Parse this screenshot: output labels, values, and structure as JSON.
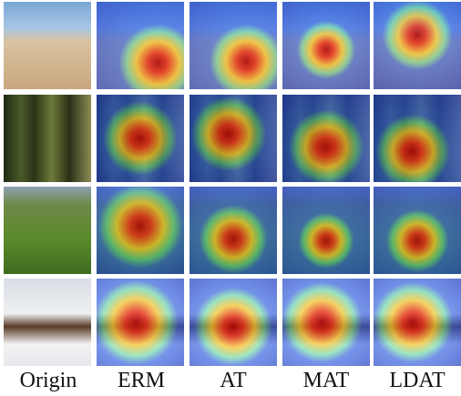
{
  "columns": [
    "Origin",
    "ERM",
    "AT",
    "MAT",
    "LDAT"
  ]
}
